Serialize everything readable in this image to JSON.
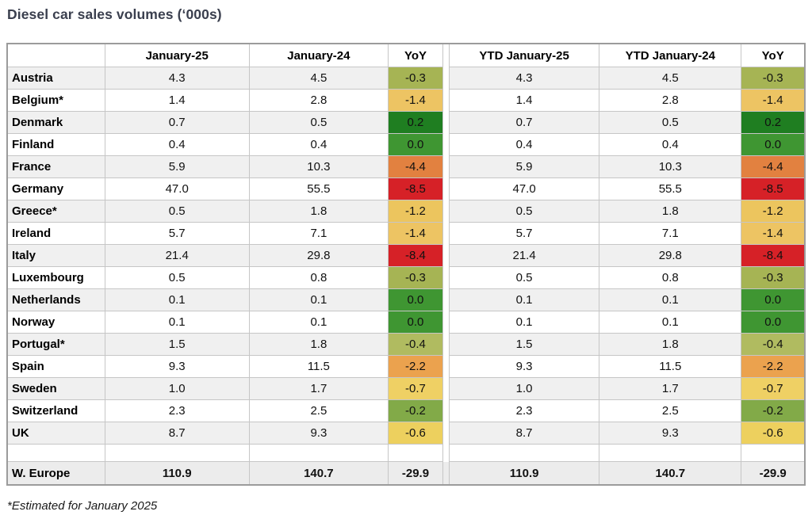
{
  "title": "Diesel car sales volumes (‘000s)",
  "footnote": "*Estimated for January 2025",
  "colors": {
    "title_text": "#3a3f4e",
    "row_alt_bg": "#f0f0f0",
    "total_row_bg": "#ececec",
    "outer_border": "#9b9b9b",
    "inner_border": "#c6c6c6"
  },
  "chart_data": {
    "type": "table",
    "title": "Diesel car sales volumes (‘000s)",
    "columns": [
      "",
      "January-25",
      "January-24",
      "YoY",
      "YTD January-25",
      "YTD January-24",
      "YoY"
    ],
    "rows": [
      {
        "country": "Austria",
        "values": [
          "4.3",
          "4.5",
          "-0.3",
          "4.3",
          "4.5",
          "-0.3"
        ],
        "yoy_color": "#a6b454"
      },
      {
        "country": "Belgium*",
        "values": [
          "1.4",
          "2.8",
          "-1.4",
          "1.4",
          "2.8",
          "-1.4"
        ],
        "yoy_color": "#edc463"
      },
      {
        "country": "Denmark",
        "values": [
          "0.7",
          "0.5",
          "0.2",
          "0.7",
          "0.5",
          "0.2"
        ],
        "yoy_color": "#1f7e21"
      },
      {
        "country": "Finland",
        "values": [
          "0.4",
          "0.4",
          "0.0",
          "0.4",
          "0.4",
          "0.0"
        ],
        "yoy_color": "#3f9632"
      },
      {
        "country": "France",
        "values": [
          "5.9",
          "10.3",
          "-4.4",
          "5.9",
          "10.3",
          "-4.4"
        ],
        "yoy_color": "#e28140"
      },
      {
        "country": "Germany",
        "values": [
          "47.0",
          "55.5",
          "-8.5",
          "47.0",
          "55.5",
          "-8.5"
        ],
        "yoy_color": "#d62127"
      },
      {
        "country": "Greece*",
        "values": [
          "0.5",
          "1.8",
          "-1.2",
          "0.5",
          "1.8",
          "-1.2"
        ],
        "yoy_color": "#ecc55e"
      },
      {
        "country": "Ireland",
        "values": [
          "5.7",
          "7.1",
          "-1.4",
          "5.7",
          "7.1",
          "-1.4"
        ],
        "yoy_color": "#edc463"
      },
      {
        "country": "Italy",
        "values": [
          "21.4",
          "29.8",
          "-8.4",
          "21.4",
          "29.8",
          "-8.4"
        ],
        "yoy_color": "#d62127"
      },
      {
        "country": "Luxembourg",
        "values": [
          "0.5",
          "0.8",
          "-0.3",
          "0.5",
          "0.8",
          "-0.3"
        ],
        "yoy_color": "#a6b454"
      },
      {
        "country": "Netherlands",
        "values": [
          "0.1",
          "0.1",
          "0.0",
          "0.1",
          "0.1",
          "0.0"
        ],
        "yoy_color": "#3f9632"
      },
      {
        "country": "Norway",
        "values": [
          "0.1",
          "0.1",
          "0.0",
          "0.1",
          "0.1",
          "0.0"
        ],
        "yoy_color": "#3f9632"
      },
      {
        "country": "Portugal*",
        "values": [
          "1.5",
          "1.8",
          "-0.4",
          "1.5",
          "1.8",
          "-0.4"
        ],
        "yoy_color": "#b0bb60"
      },
      {
        "country": "Spain",
        "values": [
          "9.3",
          "11.5",
          "-2.2",
          "9.3",
          "11.5",
          "-2.2"
        ],
        "yoy_color": "#eba24e"
      },
      {
        "country": "Sweden",
        "values": [
          "1.0",
          "1.7",
          "-0.7",
          "1.0",
          "1.7",
          "-0.7"
        ],
        "yoy_color": "#efd064"
      },
      {
        "country": "Switzerland",
        "values": [
          "2.3",
          "2.5",
          "-0.2",
          "2.3",
          "2.5",
          "-0.2"
        ],
        "yoy_color": "#82aa48"
      },
      {
        "country": "UK",
        "values": [
          "8.7",
          "9.3",
          "-0.6",
          "8.7",
          "9.3",
          "-0.6"
        ],
        "yoy_color": "#edd05e"
      }
    ],
    "total_row": {
      "country": "W. Europe",
      "values": [
        "110.9",
        "140.7",
        "-29.9",
        "110.9",
        "140.7",
        "-29.9"
      ]
    }
  }
}
